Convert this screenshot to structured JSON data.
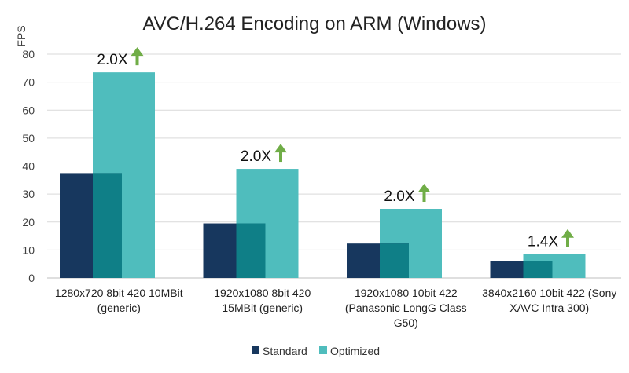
{
  "chart_data": {
    "type": "bar",
    "title": "AVC/H.264 Encoding on ARM (Windows)",
    "ylabel": "FPS",
    "xlabel": "",
    "ylim": [
      0,
      80
    ],
    "yticks": [
      0,
      10,
      20,
      30,
      40,
      50,
      60,
      70,
      80
    ],
    "grid": true,
    "legend_position": "bottom",
    "overlap": true,
    "categories": [
      [
        "1280x720 8bit 420 10MBit",
        "(generic)"
      ],
      [
        "1920x1080 8bit 420",
        "15MBit (generic)"
      ],
      [
        "1920x1080 10bit 422",
        "(Panasonic LongG Class",
        "G50)"
      ],
      [
        "3840x2160 10bit 422 (Sony",
        "XAVC Intra 300)"
      ]
    ],
    "series": [
      {
        "name": "Standard",
        "color": "#17375e",
        "values": [
          37.5,
          19.5,
          12.3,
          6
        ]
      },
      {
        "name": "Optimized",
        "color": "#4fbdbd",
        "values": [
          73.5,
          39,
          24.7,
          8.5
        ]
      }
    ],
    "overlap_color": "#0f7f87",
    "annotations": [
      "2.0X",
      "2.0X",
      "2.0X",
      "1.4X"
    ],
    "arrow_color": "#70ad47",
    "arrow_icon": "up-arrow-icon"
  }
}
